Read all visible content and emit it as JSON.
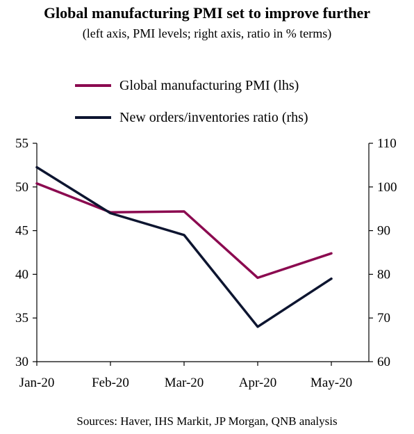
{
  "chart_data": {
    "type": "line",
    "title": "Global manufacturing PMI set to improve further",
    "subtitle": "(left axis, PMI levels; right axis, ratio in % terms)",
    "categories": [
      "Jan-20",
      "Feb-20",
      "Mar-20",
      "Apr-20",
      "May-20"
    ],
    "left_axis": {
      "ylim": [
        30,
        55
      ],
      "ticks": [
        "30",
        "35",
        "40",
        "45",
        "50",
        "55"
      ]
    },
    "right_axis": {
      "ylim": [
        60,
        110
      ],
      "ticks": [
        "60",
        "70",
        "80",
        "90",
        "100",
        "110"
      ]
    },
    "series": [
      {
        "name": "Global manufacturing PMI (lhs)",
        "axis": "left",
        "color": "#8b0a50",
        "values": [
          50.4,
          47.1,
          47.2,
          39.6,
          42.4
        ]
      },
      {
        "name": "New orders/inventories ratio (rhs)",
        "axis": "right",
        "color": "#0d1530",
        "values": [
          104.5,
          94.0,
          89.0,
          68.0,
          79.0
        ]
      }
    ],
    "grid": false,
    "legend_position": "top-left",
    "source": "Sources: Haver, IHS Markit, JP Morgan, QNB analysis"
  }
}
